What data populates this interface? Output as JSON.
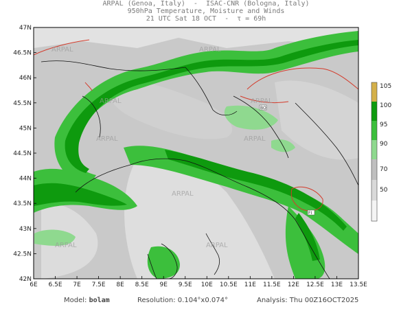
{
  "header": {
    "line1": "ARPAL (Genoa, Italy)  -  ISAC-CNR (Bologna, Italy)",
    "line2": "950hPa Temperature, Moisture and Winds",
    "line3": "21 UTC Sat 18 OCT  -  τ = 69h"
  },
  "map": {
    "lat_labels": [
      "47N",
      "46.5N",
      "46N",
      "45.5N",
      "45N",
      "44.5N",
      "44N",
      "43.5N",
      "43N",
      "42.5N",
      "42N"
    ],
    "lon_labels": [
      "6E",
      "6.5E",
      "7E",
      "7.5E",
      "8E",
      "8.5E",
      "9E",
      "9.5E",
      "10E",
      "10.5E",
      "11E",
      "11.5E",
      "12E",
      "12.5E",
      "13E",
      "13.5E"
    ],
    "watermark": "ARPAL",
    "city_marker": "BO",
    "city_marker2": "FI"
  },
  "legend": {
    "values": [
      "105",
      "100",
      "95",
      "90",
      "70",
      "50"
    ],
    "colors": {
      "very_high": "#d4b04a",
      "high": "#0e9a0e",
      "mid": "#3cbf3c",
      "low": "#8fd98f",
      "pale": "#bfbfbf",
      "light": "#d9d9d9",
      "none": "#f4f4f4"
    }
  },
  "footer": {
    "model_label": "Model:",
    "model_value": "bolam",
    "resolution": "Resolution: 0.104°x0.074°",
    "analysis": "Analysis: Thu 00Z16OCT2025"
  }
}
